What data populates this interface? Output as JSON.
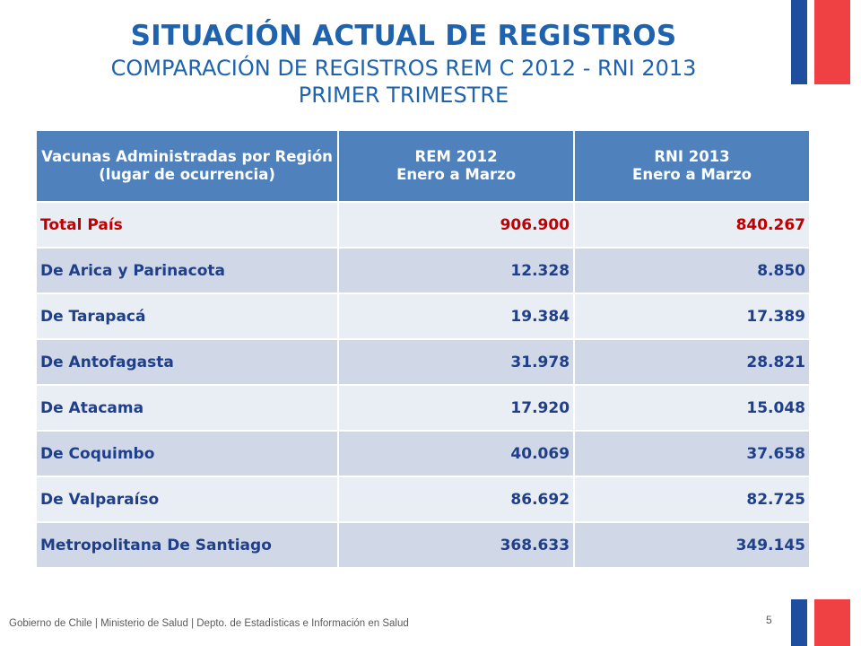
{
  "title": "SITUACIÓN ACTUAL DE REGISTROS",
  "subtitle_line1": "COMPARACIÓN DE REGISTROS REM C 2012 - RNI 2013",
  "subtitle_line2": "PRIMER TRIMESTRE",
  "colors": {
    "title": "#1f62ad",
    "header_bg": "#4f81bd",
    "row_dark": "#d0d8e8",
    "row_light": "#e9edf4",
    "text_blue": "#1f3f8a",
    "total_red": "#c00000",
    "flag_blue": "#1f4e9e",
    "flag_red": "#ef4044"
  },
  "table": {
    "headers": [
      {
        "line1": "Vacunas Administradas por Región (lugar de ocurrencia)",
        "line2": ""
      },
      {
        "line1": "REM 2012",
        "line2": "Enero a Marzo"
      },
      {
        "line1": "RNI 2013",
        "line2": "Enero a Marzo"
      }
    ],
    "rows": [
      {
        "region": "Total País",
        "rem_2012": "906.900",
        "rni_2013": "840.267"
      },
      {
        "region": "De Arica y Parinacota",
        "rem_2012": "12.328",
        "rni_2013": "8.850"
      },
      {
        "region": "De Tarapacá",
        "rem_2012": "19.384",
        "rni_2013": "17.389"
      },
      {
        "region": "De Antofagasta",
        "rem_2012": "31.978",
        "rni_2013": "28.821"
      },
      {
        "region": "De Atacama",
        "rem_2012": "17.920",
        "rni_2013": "15.048"
      },
      {
        "region": "De Coquimbo",
        "rem_2012": "40.069",
        "rni_2013": "37.658"
      },
      {
        "region": "De Valparaíso",
        "rem_2012": "86.692",
        "rni_2013": "82.725"
      },
      {
        "region": "Metropolitana De Santiago",
        "rem_2012": "368.633",
        "rni_2013": "349.145"
      }
    ]
  },
  "footer": {
    "text": "Gobierno de Chile | Ministerio de Salud | Depto. de Estadísticas e Información en Salud",
    "page_number": "5"
  }
}
